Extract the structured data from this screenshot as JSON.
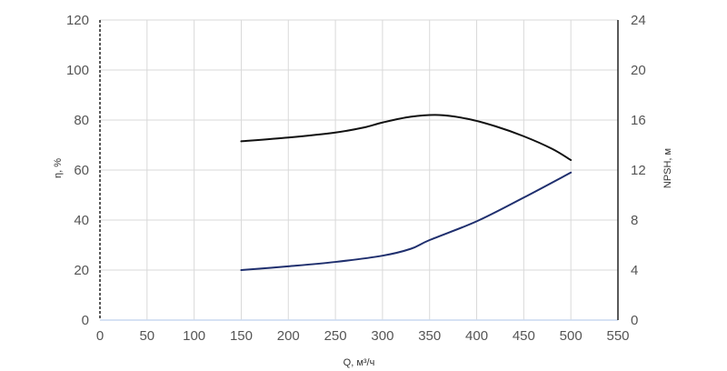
{
  "chart_data": {
    "type": "line",
    "title": "",
    "xlabel": "Q, м³/ч",
    "ylabel_left": "η, %",
    "ylabel_right": "NPSH, м",
    "xlim": [
      0,
      550
    ],
    "ylim_left": [
      0,
      120
    ],
    "ylim_right": [
      0,
      24
    ],
    "x_ticks": [
      0,
      50,
      100,
      150,
      200,
      250,
      300,
      350,
      400,
      450,
      500,
      550
    ],
    "y_left_ticks": [
      0,
      20,
      40,
      60,
      80,
      100,
      120
    ],
    "y_right_ticks": [
      0,
      4,
      8,
      12,
      16,
      20,
      24
    ],
    "grid": true,
    "series": [
      {
        "axis": "left",
        "color": "#111111",
        "x": [
          150,
          200,
          250,
          280,
          300,
          330,
          360,
          390,
          420,
          450,
          480,
          500
        ],
        "y": [
          71.5,
          73,
          75,
          77,
          79,
          81.3,
          82,
          80.5,
          77.5,
          73.5,
          68.5,
          64
        ]
      },
      {
        "axis": "right",
        "color": "#1f2f6e",
        "x": [
          150,
          200,
          250,
          300,
          330,
          350,
          400,
          450,
          500
        ],
        "y": [
          4,
          4.3,
          4.65,
          5.15,
          5.7,
          6.4,
          7.9,
          9.8,
          11.8
        ]
      }
    ]
  }
}
